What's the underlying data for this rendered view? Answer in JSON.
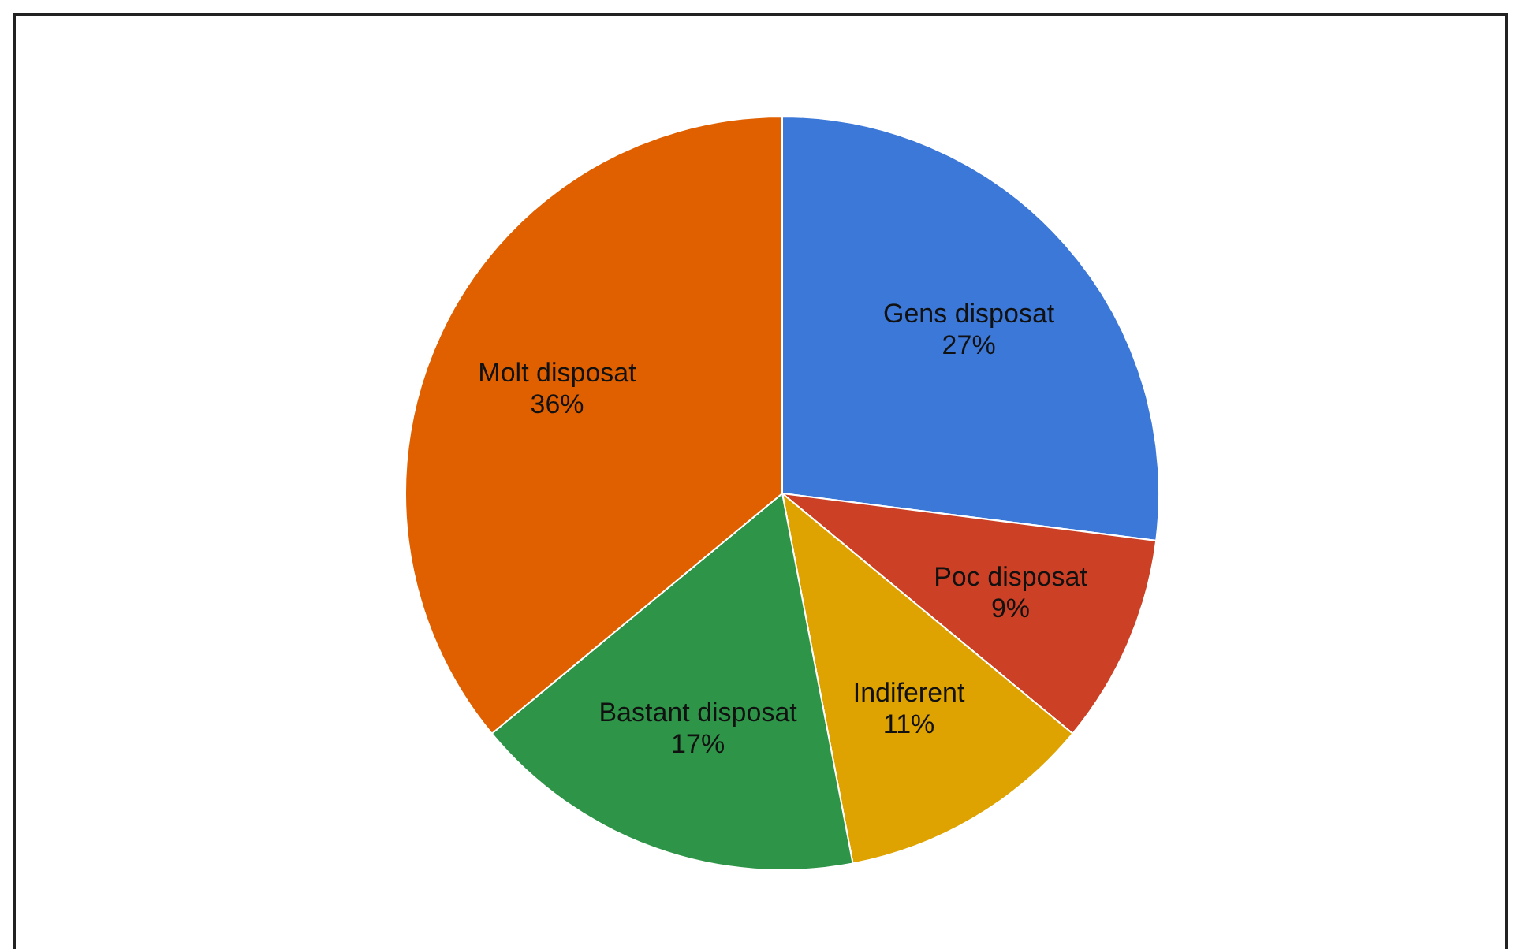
{
  "chart_data": {
    "type": "pie",
    "categories": [
      "Gens disposat",
      "Poc disposat",
      "Indiferent",
      "Bastant disposat",
      "Molt disposat"
    ],
    "values": [
      27,
      9,
      11,
      17,
      36
    ],
    "value_labels": [
      "27%",
      "9%",
      "11%",
      "17%",
      "36%"
    ],
    "colors": [
      "#3c78d8",
      "#cc4125",
      "#dea300",
      "#2e9448",
      "#e06000"
    ]
  }
}
